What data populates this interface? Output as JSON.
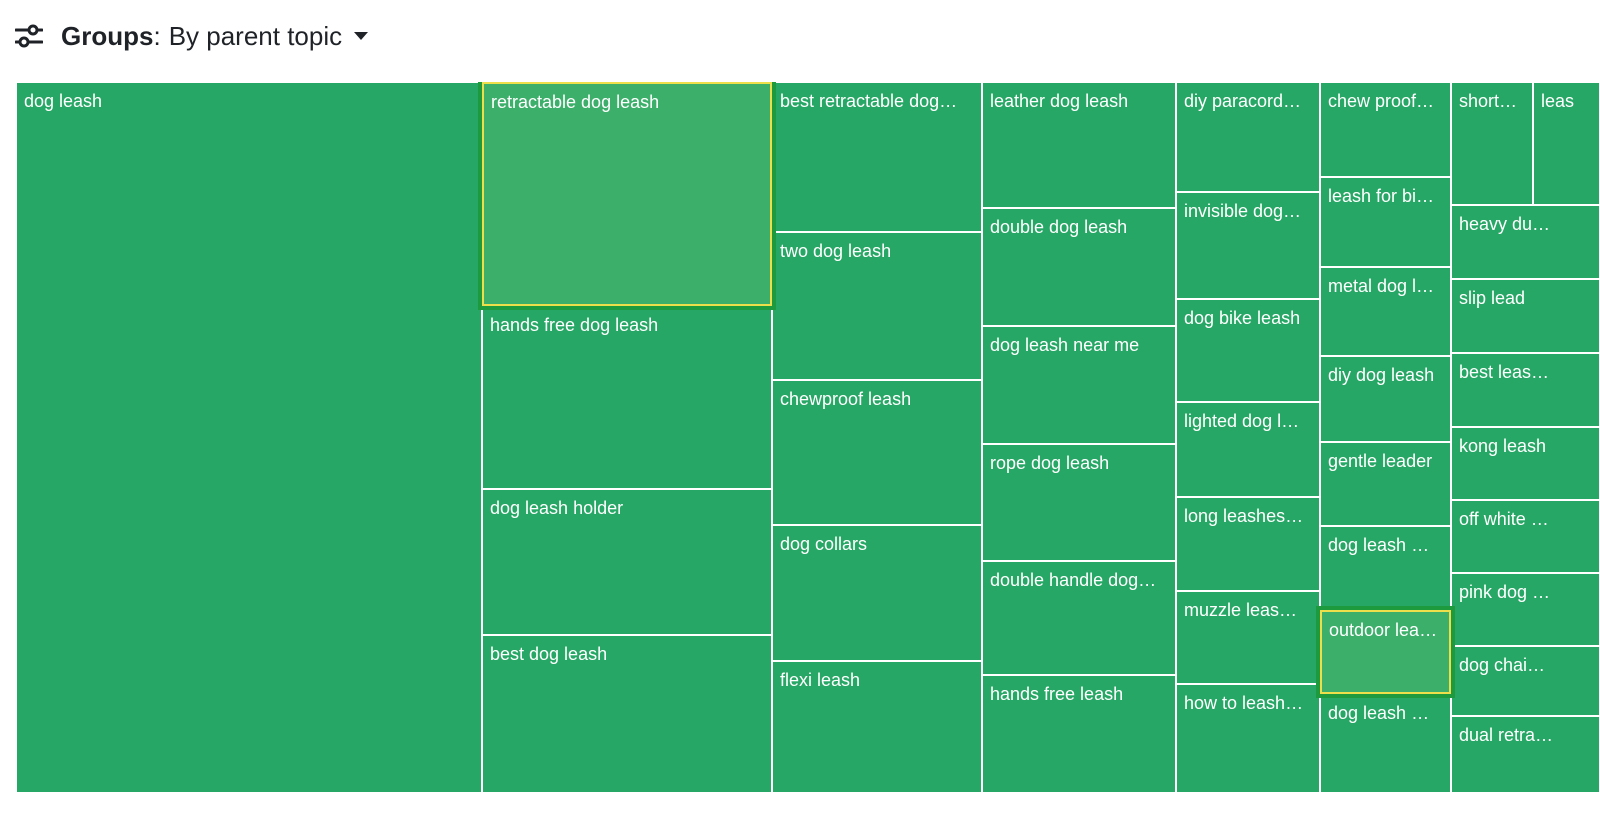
{
  "header": {
    "filter_icon": "filter-sliders-icon",
    "groups_label": "Groups",
    "groups_colon": ":",
    "groups_value": "By parent topic",
    "caret_icon": "caret-down-icon"
  },
  "colors": {
    "tile": "#27a765",
    "tile_highlight": "#3caf6b",
    "highlight_border": "#ecdf4b",
    "highlight_glow": "#1e9a3e"
  },
  "treemap": {
    "tiles": [
      {
        "label": "dog leash"
      },
      {
        "label": "retractable dog leash",
        "highlighted": true
      },
      {
        "label": "hands free dog leash"
      },
      {
        "label": "dog leash holder"
      },
      {
        "label": "best dog leash"
      },
      {
        "label": "best retractable dog…"
      },
      {
        "label": "two dog leash"
      },
      {
        "label": "chewproof leash"
      },
      {
        "label": "dog collars"
      },
      {
        "label": "flexi leash"
      },
      {
        "label": "leather dog leash"
      },
      {
        "label": "double dog leash"
      },
      {
        "label": "dog leash near me"
      },
      {
        "label": "rope dog leash"
      },
      {
        "label": "double handle dog…"
      },
      {
        "label": "hands free leash"
      },
      {
        "label": "diy paracord…"
      },
      {
        "label": "invisible dog…"
      },
      {
        "label": "dog bike leash"
      },
      {
        "label": "lighted dog l…"
      },
      {
        "label": "long leashes…"
      },
      {
        "label": "muzzle leas…"
      },
      {
        "label": "how to leash…"
      },
      {
        "label": "chew proof…"
      },
      {
        "label": "leash for bi…"
      },
      {
        "label": "metal dog l…"
      },
      {
        "label": "diy dog leash"
      },
      {
        "label": "gentle leader"
      },
      {
        "label": "dog leash …"
      },
      {
        "label": "outdoor lea…",
        "highlighted": true
      },
      {
        "label": "dog leash …"
      },
      {
        "label": "short…"
      },
      {
        "label": "leas"
      },
      {
        "label": "heavy du…"
      },
      {
        "label": "slip lead"
      },
      {
        "label": "best leas…"
      },
      {
        "label": "kong leash"
      },
      {
        "label": "off white …"
      },
      {
        "label": "pink dog …"
      },
      {
        "label": "dog chai…"
      },
      {
        "label": "dual retra…"
      }
    ]
  }
}
